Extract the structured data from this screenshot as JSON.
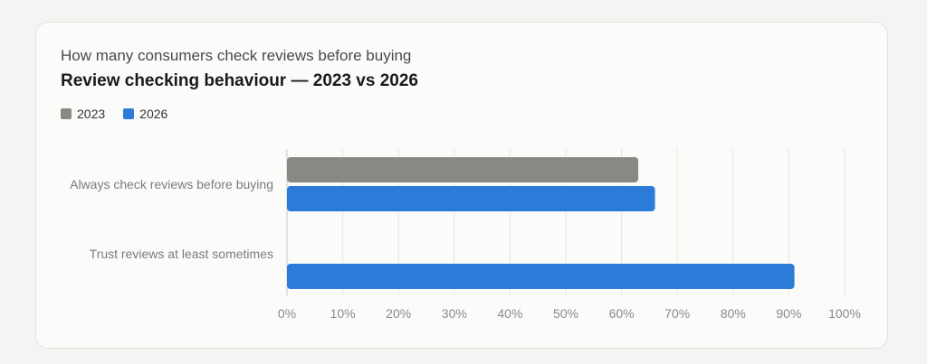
{
  "subtitle": "How many consumers check reviews before buying",
  "title": "Review checking behaviour — 2023 vs 2026",
  "chart_data": {
    "type": "bar",
    "orientation": "horizontal",
    "categories": [
      "Always check reviews before buying",
      "Trust reviews at least sometimes"
    ],
    "series": [
      {
        "name": "2023",
        "color": "#898883",
        "values": [
          63,
          null
        ]
      },
      {
        "name": "2026",
        "color": "#2c7bd8",
        "values": [
          66,
          91
        ]
      }
    ],
    "xlim": [
      0,
      100
    ],
    "xticks": [
      0,
      10,
      20,
      30,
      40,
      50,
      60,
      70,
      80,
      90,
      100
    ],
    "xtick_labels": [
      "0%",
      "10%",
      "20%",
      "30%",
      "40%",
      "50%",
      "60%",
      "70%",
      "80%",
      "90%",
      "100%"
    ],
    "grid": "vertical",
    "legend": "top-left"
  }
}
